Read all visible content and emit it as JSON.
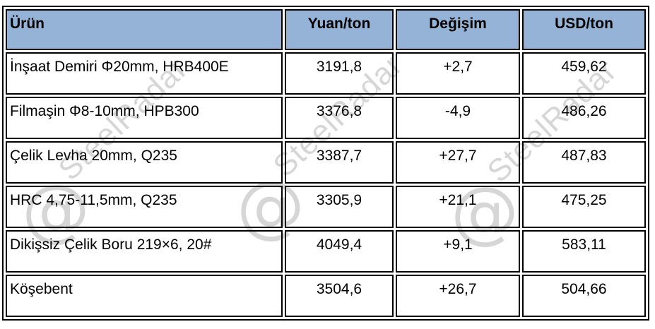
{
  "chart_data": {
    "type": "table",
    "title": "",
    "columns": [
      "Ürün",
      "Yuan/ton",
      "Değişim",
      "USD/ton"
    ],
    "rows": [
      [
        "İnşaat Demiri Φ20mm, HRB400E",
        "3191,8",
        "+2,7",
        "459,62"
      ],
      [
        "Filmaşin Φ8-10mm, HPB300",
        "3376,8",
        "-4,9",
        "486,26"
      ],
      [
        "Çelik Levha 20mm, Q235",
        "3387,7",
        "+27,7",
        "487,83"
      ],
      [
        "HRC 4,75-11,5mm, Q235",
        "3305,9",
        "+21,1",
        "475,25"
      ],
      [
        "Dikişsiz Çelik Boru 219×6, 20#",
        "4049,4",
        "+9,1",
        "583,11"
      ],
      [
        "Köşebent",
        "3504,6",
        "+26,7",
        "504,66"
      ]
    ],
    "layout": {
      "header_align": [
        "left",
        "center",
        "center",
        "center"
      ],
      "body_align": [
        "left",
        "center",
        "center",
        "center"
      ]
    }
  },
  "watermark": {
    "symbol": "@",
    "text": "SteelRadar"
  },
  "colors": {
    "header_bg": "#95b3d7",
    "border": "#000000",
    "cell_bg": "#ffffff",
    "text": "#000000",
    "watermark": "#d6d6d6"
  }
}
